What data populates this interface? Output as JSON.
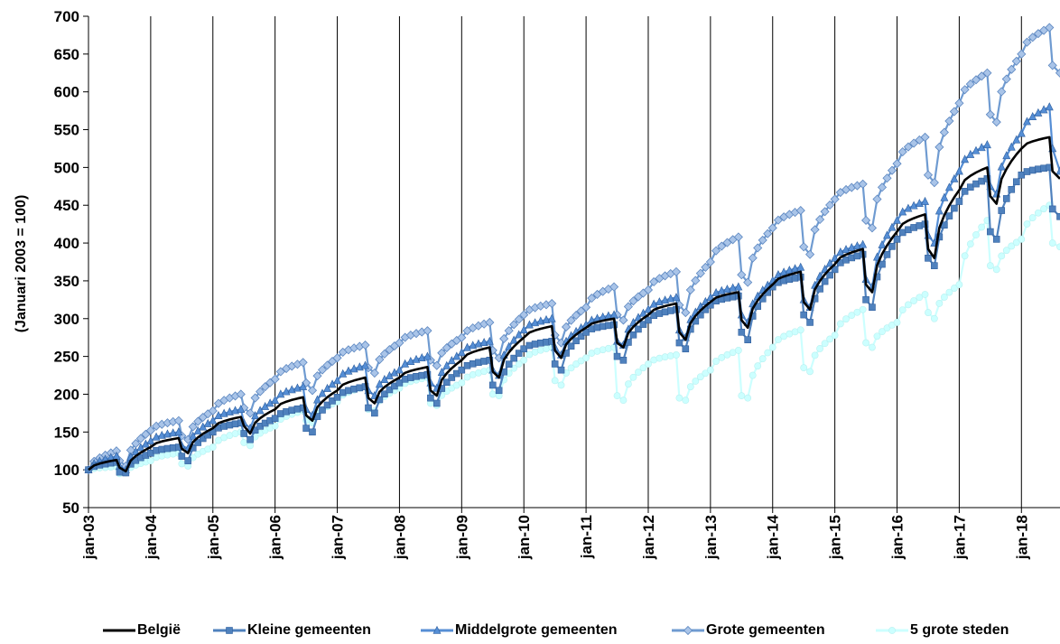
{
  "chart_data": {
    "type": "line",
    "title": "",
    "xlabel": "",
    "ylabel": "(Januari 2003 = 100)",
    "ylim": [
      50,
      700
    ],
    "yticks": [
      50,
      100,
      150,
      200,
      250,
      300,
      350,
      400,
      450,
      500,
      550,
      600,
      650,
      700
    ],
    "xlim": [
      2003.0,
      2018.62
    ],
    "xticks": [
      {
        "x": 2003,
        "label": "jan-03"
      },
      {
        "x": 2004,
        "label": "jan-04"
      },
      {
        "x": 2005,
        "label": "jan-05"
      },
      {
        "x": 2006,
        "label": "jan-06"
      },
      {
        "x": 2007,
        "label": "jan-07"
      },
      {
        "x": 2008,
        "label": "jan-08"
      },
      {
        "x": 2009,
        "label": "jan-09"
      },
      {
        "x": 2010,
        "label": "jan-10"
      },
      {
        "x": 2011,
        "label": "jan-11"
      },
      {
        "x": 2012,
        "label": "jan-12"
      },
      {
        "x": 2013,
        "label": "jan-13"
      },
      {
        "x": 2014,
        "label": "jan-14"
      },
      {
        "x": 2015,
        "label": "jan-15"
      },
      {
        "x": 2016,
        "label": "jan-16"
      },
      {
        "x": 2017,
        "label": "jan-17"
      },
      {
        "x": 2018,
        "label": "jan-18"
      }
    ],
    "grid": "vertical",
    "legend_position": "bottom",
    "series": [
      {
        "name": "België",
        "color": "#000000",
        "marker": "none",
        "x": [
          2003,
          2003.45,
          2003.5,
          2003.6,
          2004,
          2004.45,
          2004.5,
          2004.6,
          2005,
          2005.45,
          2005.5,
          2005.6,
          2006,
          2006.45,
          2006.5,
          2006.6,
          2007,
          2007.45,
          2007.5,
          2007.6,
          2008,
          2008.45,
          2008.5,
          2008.6,
          2009,
          2009.45,
          2009.5,
          2009.6,
          2010,
          2010.45,
          2010.5,
          2010.6,
          2011,
          2011.45,
          2011.5,
          2011.6,
          2012,
          2012.45,
          2012.5,
          2012.6,
          2013,
          2013.45,
          2013.5,
          2013.6,
          2014,
          2014.45,
          2014.5,
          2014.6,
          2015,
          2015.45,
          2015.5,
          2015.6,
          2016,
          2016.45,
          2016.5,
          2016.6,
          2017,
          2017.45,
          2017.5,
          2017.6,
          2018,
          2018.45,
          2018.5,
          2018.62
        ],
        "values": [
          100,
          113,
          103,
          98,
          130,
          142,
          128,
          122,
          155,
          170,
          158,
          148,
          180,
          196,
          172,
          165,
          205,
          222,
          195,
          188,
          222,
          236,
          205,
          198,
          245,
          262,
          230,
          222,
          275,
          290,
          258,
          248,
          288,
          300,
          268,
          262,
          305,
          320,
          282,
          272,
          322,
          335,
          298,
          288,
          345,
          362,
          322,
          312,
          372,
          392,
          345,
          335,
          415,
          438,
          392,
          380,
          470,
          500,
          462,
          452,
          525,
          540,
          495,
          485
        ]
      },
      {
        "name": "Kleine gemeenten",
        "color": "#4f81bd",
        "marker": "square",
        "x": [
          2003,
          2003.45,
          2003.5,
          2003.6,
          2004,
          2004.45,
          2004.5,
          2004.6,
          2005,
          2005.45,
          2005.5,
          2005.6,
          2006,
          2006.45,
          2006.5,
          2006.6,
          2007,
          2007.45,
          2007.5,
          2007.6,
          2008,
          2008.45,
          2008.5,
          2008.6,
          2009,
          2009.45,
          2009.5,
          2009.6,
          2010,
          2010.45,
          2010.5,
          2010.6,
          2011,
          2011.45,
          2011.5,
          2011.6,
          2012,
          2012.45,
          2012.5,
          2012.6,
          2013,
          2013.45,
          2013.5,
          2013.6,
          2014,
          2014.45,
          2014.5,
          2014.6,
          2015,
          2015.45,
          2015.5,
          2015.6,
          2016,
          2016.45,
          2016.5,
          2016.6,
          2017,
          2017.45,
          2017.5,
          2017.6,
          2018,
          2018.45,
          2018.5,
          2018.62
        ],
        "values": [
          100,
          110,
          97,
          96,
          122,
          130,
          118,
          112,
          150,
          162,
          148,
          140,
          168,
          182,
          155,
          150,
          196,
          210,
          182,
          175,
          215,
          226,
          195,
          188,
          232,
          245,
          212,
          205,
          260,
          270,
          240,
          232,
          282,
          292,
          250,
          245,
          298,
          312,
          268,
          260,
          318,
          330,
          282,
          272,
          342,
          355,
          305,
          295,
          365,
          385,
          325,
          315,
          405,
          425,
          380,
          370,
          455,
          485,
          415,
          405,
          490,
          500,
          445,
          435
        ]
      },
      {
        "name": "Middelgrote gemeenten",
        "color": "#558ed5",
        "marker": "triangle",
        "x": [
          2003,
          2003.45,
          2003.5,
          2003.6,
          2004,
          2004.45,
          2004.5,
          2004.6,
          2005,
          2005.45,
          2005.5,
          2005.6,
          2006,
          2006.45,
          2006.5,
          2006.6,
          2007,
          2007.45,
          2007.5,
          2007.6,
          2008,
          2008.45,
          2008.5,
          2008.6,
          2009,
          2009.45,
          2009.5,
          2009.6,
          2010,
          2010.45,
          2010.5,
          2010.6,
          2011,
          2011.45,
          2011.5,
          2011.6,
          2012,
          2012.45,
          2012.5,
          2012.6,
          2013,
          2013.45,
          2013.5,
          2013.6,
          2014,
          2014.45,
          2014.5,
          2014.6,
          2015,
          2015.45,
          2015.5,
          2015.6,
          2016,
          2016.45,
          2016.5,
          2016.6,
          2017,
          2017.45,
          2017.5,
          2017.6,
          2018,
          2018.45,
          2018.5,
          2018.62
        ],
        "values": [
          100,
          118,
          105,
          100,
          138,
          150,
          132,
          128,
          165,
          180,
          162,
          155,
          192,
          210,
          180,
          172,
          218,
          238,
          205,
          198,
          232,
          250,
          215,
          208,
          255,
          270,
          232,
          225,
          285,
          300,
          262,
          252,
          292,
          305,
          270,
          265,
          312,
          328,
          285,
          275,
          328,
          342,
          305,
          295,
          350,
          368,
          325,
          315,
          380,
          398,
          352,
          342,
          430,
          455,
          410,
          400,
          495,
          530,
          475,
          465,
          545,
          580,
          525,
          495
        ]
      },
      {
        "name": "Grote gemeenten",
        "color": "#6f9bd1",
        "marker": "diamond",
        "x": [
          2003,
          2003.45,
          2003.5,
          2003.6,
          2004,
          2004.45,
          2004.5,
          2004.6,
          2005,
          2005.45,
          2005.5,
          2005.6,
          2006,
          2006.45,
          2006.5,
          2006.6,
          2007,
          2007.45,
          2007.5,
          2007.6,
          2008,
          2008.45,
          2008.5,
          2008.6,
          2009,
          2009.45,
          2009.5,
          2009.6,
          2010,
          2010.45,
          2010.5,
          2010.6,
          2011,
          2011.45,
          2011.5,
          2011.6,
          2012,
          2012.45,
          2012.5,
          2012.6,
          2013,
          2013.45,
          2013.5,
          2013.6,
          2014,
          2014.45,
          2014.5,
          2014.6,
          2015,
          2015.45,
          2015.5,
          2015.6,
          2016,
          2016.45,
          2016.5,
          2016.6,
          2017,
          2017.45,
          2017.5,
          2017.6,
          2018,
          2018.45,
          2018.5,
          2018.62
        ],
        "values": [
          100,
          125,
          112,
          105,
          152,
          165,
          145,
          140,
          178,
          200,
          182,
          175,
          220,
          242,
          215,
          205,
          248,
          265,
          235,
          228,
          268,
          284,
          245,
          238,
          275,
          295,
          258,
          248,
          305,
          320,
          278,
          268,
          315,
          342,
          305,
          298,
          338,
          362,
          318,
          308,
          375,
          408,
          358,
          348,
          420,
          443,
          395,
          385,
          458,
          478,
          430,
          420,
          505,
          540,
          490,
          480,
          585,
          625,
          570,
          560,
          650,
          685,
          635,
          625
        ]
      },
      {
        "name": "5 grote steden",
        "color": "#ccffff",
        "marker": "circle",
        "x": [
          2003,
          2003.45,
          2003.5,
          2003.6,
          2004,
          2004.45,
          2004.5,
          2004.6,
          2005,
          2005.45,
          2005.5,
          2005.6,
          2006,
          2006.45,
          2006.5,
          2006.6,
          2007,
          2007.45,
          2007.5,
          2007.6,
          2008,
          2008.45,
          2008.5,
          2008.6,
          2009,
          2009.45,
          2009.5,
          2009.6,
          2010,
          2010.45,
          2010.5,
          2010.6,
          2011,
          2011.45,
          2011.5,
          2011.6,
          2012,
          2012.45,
          2012.5,
          2012.6,
          2013,
          2013.45,
          2013.5,
          2013.6,
          2014,
          2014.45,
          2014.5,
          2014.6,
          2015,
          2015.45,
          2015.5,
          2015.6,
          2016,
          2016.45,
          2016.5,
          2016.6,
          2017,
          2017.45,
          2017.5,
          2017.6,
          2018,
          2018.45,
          2018.5,
          2018.62
        ],
        "values": [
          100,
          104,
          95,
          96,
          112,
          122,
          108,
          105,
          130,
          150,
          136,
          132,
          158,
          178,
          165,
          162,
          190,
          210,
          180,
          178,
          208,
          222,
          188,
          185,
          215,
          232,
          200,
          198,
          245,
          262,
          218,
          212,
          248,
          262,
          198,
          192,
          240,
          252,
          195,
          192,
          232,
          258,
          198,
          195,
          262,
          285,
          235,
          230,
          278,
          312,
          268,
          262,
          295,
          332,
          308,
          300,
          345,
          430,
          370,
          365,
          405,
          450,
          400,
          395
        ]
      }
    ]
  }
}
